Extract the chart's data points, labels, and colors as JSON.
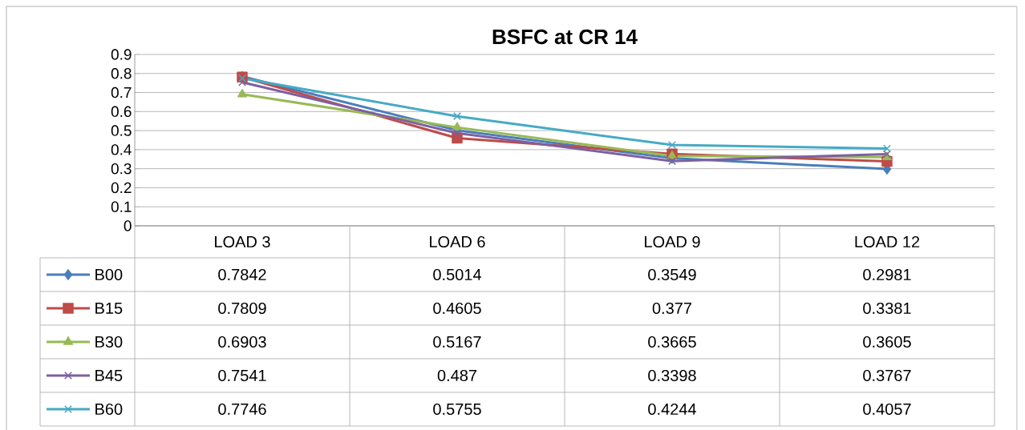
{
  "chart_data": {
    "type": "line",
    "title": "BSFC at CR 14",
    "categories": [
      "LOAD 3",
      "LOAD 6",
      "LOAD 9",
      "LOAD 12"
    ],
    "series": [
      {
        "name": "B00",
        "color": "#4a7ebb",
        "marker": "diamond",
        "values": [
          0.7842,
          0.5014,
          0.3549,
          0.2981
        ]
      },
      {
        "name": "B15",
        "color": "#be4b48",
        "marker": "square",
        "values": [
          0.7809,
          0.4605,
          0.377,
          0.3381
        ]
      },
      {
        "name": "B30",
        "color": "#98b954",
        "marker": "triangle",
        "values": [
          0.6903,
          0.5167,
          0.3665,
          0.3605
        ]
      },
      {
        "name": "B45",
        "color": "#7d60a0",
        "marker": "cross",
        "values": [
          0.7541,
          0.487,
          0.3398,
          0.3767
        ]
      },
      {
        "name": "B60",
        "color": "#46aac5",
        "marker": "cross",
        "values": [
          0.7746,
          0.5755,
          0.4244,
          0.4057
        ]
      }
    ],
    "ylim": [
      0,
      0.9
    ],
    "yticks": [
      0,
      0.1,
      0.2,
      0.3,
      0.4,
      0.5,
      0.6,
      0.7,
      0.8,
      0.9
    ],
    "grid": "y",
    "legend": "bottom",
    "data_labels": true
  }
}
